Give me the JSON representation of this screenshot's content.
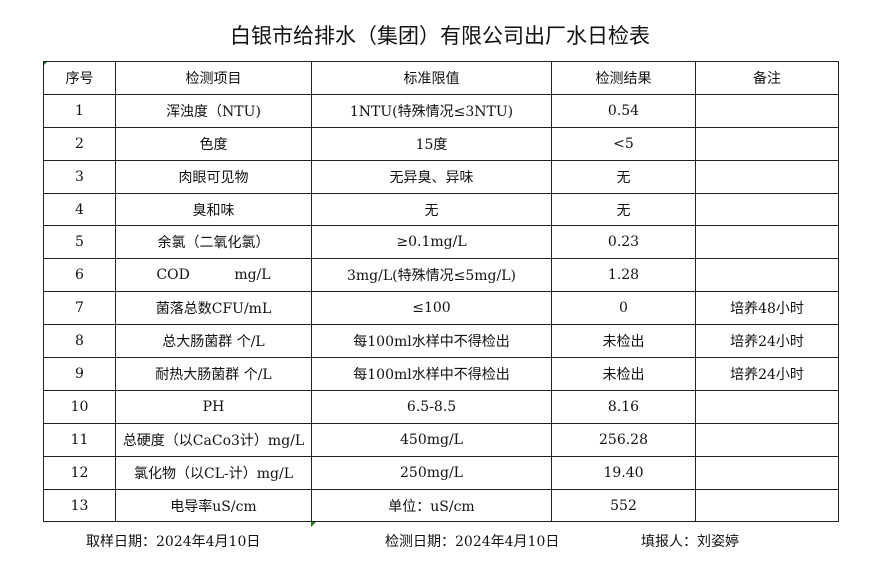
{
  "title": "白银市给排水（集团）有限公司出厂水日检表",
  "headers": [
    "序号",
    "检测项目",
    "标准限值",
    "检测结果",
    "备注"
  ],
  "rows": [
    [
      "1",
      "浑浊度（NTU)",
      "1NTU(特殊情况≤3NTU)",
      "0.54",
      ""
    ],
    [
      "2",
      "色度",
      "15度",
      "<5",
      ""
    ],
    [
      "3",
      "肉眼可见物",
      "无异臭、异味",
      "无",
      ""
    ],
    [
      "4",
      "臭和味",
      "无",
      "无",
      ""
    ],
    [
      "5",
      "余氯（二氧化氯）",
      "≥0.1mg/L",
      "0.23",
      ""
    ],
    [
      "6",
      "COD          mg/L",
      "3mg/L(特殊情况≤5mg/L)",
      "1.28",
      ""
    ],
    [
      "7",
      "菌落总数CFU/mL",
      "≤100",
      "0",
      "培养48小时"
    ],
    [
      "8",
      "总大肠菌群 个/L",
      "每100ml水样中不得检出",
      "未检出",
      "培养24小时"
    ],
    [
      "9",
      "耐热大肠菌群 个/L",
      "每100ml水样中不得检出",
      "未检出",
      "培养24小时"
    ],
    [
      "10",
      "PH",
      "6.5-8.5",
      "8.16",
      ""
    ],
    [
      "11",
      "总硬度（以CaCo3计）mg/L",
      "450mg/L",
      "256.28",
      ""
    ],
    [
      "12",
      "氯化物（以CL-计）mg/L",
      "250mg/L",
      "19.40",
      ""
    ],
    [
      "13",
      "电导率uS/cm",
      "单位：uS/cm",
      "552",
      ""
    ]
  ],
  "footer": {
    "sampling_date": "取样日期：2024年4月10日",
    "test_date": "检测日期：2024年4月10日",
    "reporter": "填报人：刘姿婷"
  }
}
